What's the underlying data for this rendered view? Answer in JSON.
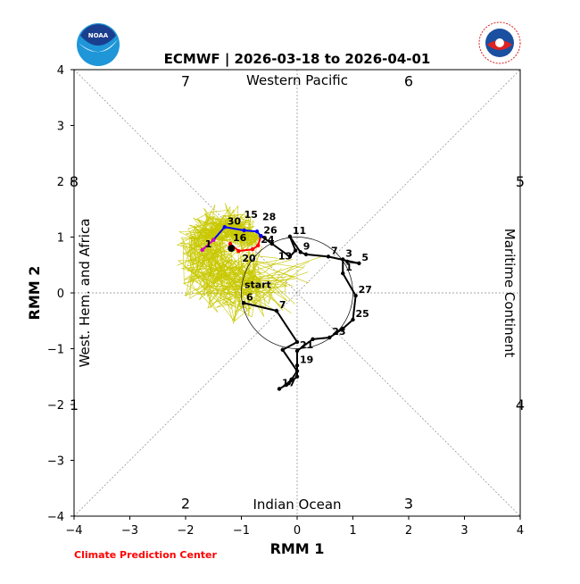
{
  "chart_data": {
    "type": "line",
    "title": "ECMWF | 2026-03-18 to 2026-04-01",
    "xlabel": "RMM 1",
    "ylabel": "RMM 2",
    "xlim": [
      -4,
      4
    ],
    "ylim": [
      -4,
      4
    ],
    "xticks": [
      "−4",
      "−3",
      "−2",
      "−1",
      "0",
      "1",
      "2",
      "3",
      "4"
    ],
    "yticks": [
      "−4",
      "−3",
      "−2",
      "−1",
      "0",
      "1",
      "2",
      "3",
      "4"
    ],
    "phase_labels": [
      {
        "text": "7",
        "x": -2,
        "y": 3.8
      },
      {
        "text": "6",
        "x": 2,
        "y": 3.8
      },
      {
        "text": "8",
        "x": -3.8,
        "y": 2
      },
      {
        "text": "5",
        "x": 3.8,
        "y": 2
      },
      {
        "text": "1",
        "x": -3.8,
        "y": -2
      },
      {
        "text": "4",
        "x": 3.8,
        "y": -2
      },
      {
        "text": "2",
        "x": -2,
        "y": -3.8
      },
      {
        "text": "3",
        "x": 2,
        "y": -3.8
      }
    ],
    "regions": {
      "top": "Western Pacific",
      "bottom": "Indian Ocean",
      "left": "West. Hem. and Africa",
      "right": "Maritime Continent"
    },
    "start_label": "start",
    "observed": [
      [
        -0.96,
        -0.18,
        "6"
      ],
      [
        -0.37,
        -0.32,
        "7"
      ],
      [
        0,
        -0.88,
        ""
      ],
      [
        -0.26,
        -1.02,
        ""
      ],
      [
        0,
        -1.4,
        ""
      ],
      [
        -0.1,
        -1.55,
        ""
      ],
      [
        -0.2,
        -1.65,
        ""
      ],
      [
        -0.32,
        -1.72,
        "17"
      ],
      [
        -0.15,
        -1.62,
        ""
      ],
      [
        0,
        -1.5,
        ""
      ],
      [
        0,
        -1.3,
        "19"
      ],
      [
        0,
        -1.04,
        "21"
      ],
      [
        0.28,
        -0.83,
        ""
      ],
      [
        0.58,
        -0.8,
        "23"
      ],
      [
        0.82,
        -0.64,
        ""
      ],
      [
        1.0,
        -0.48,
        "25"
      ],
      [
        1.05,
        -0.05,
        "27"
      ],
      [
        0.82,
        0.35,
        "1"
      ],
      [
        0.82,
        0.6,
        "3"
      ],
      [
        0.9,
        0.56,
        ""
      ],
      [
        1.11,
        0.53,
        "5"
      ],
      [
        0.56,
        0.65,
        "7"
      ],
      [
        0.16,
        0.69,
        ""
      ],
      [
        0.06,
        0.73,
        "9"
      ],
      [
        -0.13,
        1.01,
        "11"
      ],
      [
        -0.03,
        0.76,
        "13"
      ],
      [
        -0.13,
        0.65,
        ""
      ],
      [
        -0.45,
        0.88,
        ""
      ],
      [
        -0.65,
        1.02,
        ""
      ]
    ],
    "forecast_mean": [
      [
        -0.65,
        1.02,
        "26"
      ],
      [
        -0.72,
        1.1,
        "28"
      ],
      [
        -0.95,
        1.12,
        "15"
      ],
      [
        -1.3,
        1.18,
        "30"
      ],
      [
        -1.5,
        0.95,
        ""
      ]
    ],
    "forecast_mean_end": [
      [
        -1.5,
        0.95,
        ""
      ],
      [
        -1.7,
        0.77,
        "1"
      ]
    ],
    "forecast_red": [
      [
        -1.2,
        0.88,
        "16"
      ],
      [
        -1.05,
        0.75,
        "20"
      ],
      [
        -0.8,
        0.78,
        ""
      ],
      [
        -0.7,
        0.85,
        "24"
      ],
      [
        -0.65,
        1.02,
        ""
      ]
    ],
    "ensemble_center": [
      -1.15,
      0.85
    ]
  },
  "footer": {
    "credit": "Climate Prediction Center"
  },
  "logos": {
    "left": "NOAA",
    "right": "NATIONAL WEATHER SERVICE"
  },
  "colors": {
    "observed": "#000000",
    "forecast": "#0000ff",
    "forecast_end": "#cc00cc",
    "ensemble": "#c8c800",
    "mean": "#ff0000",
    "credit": "#ff0000"
  }
}
